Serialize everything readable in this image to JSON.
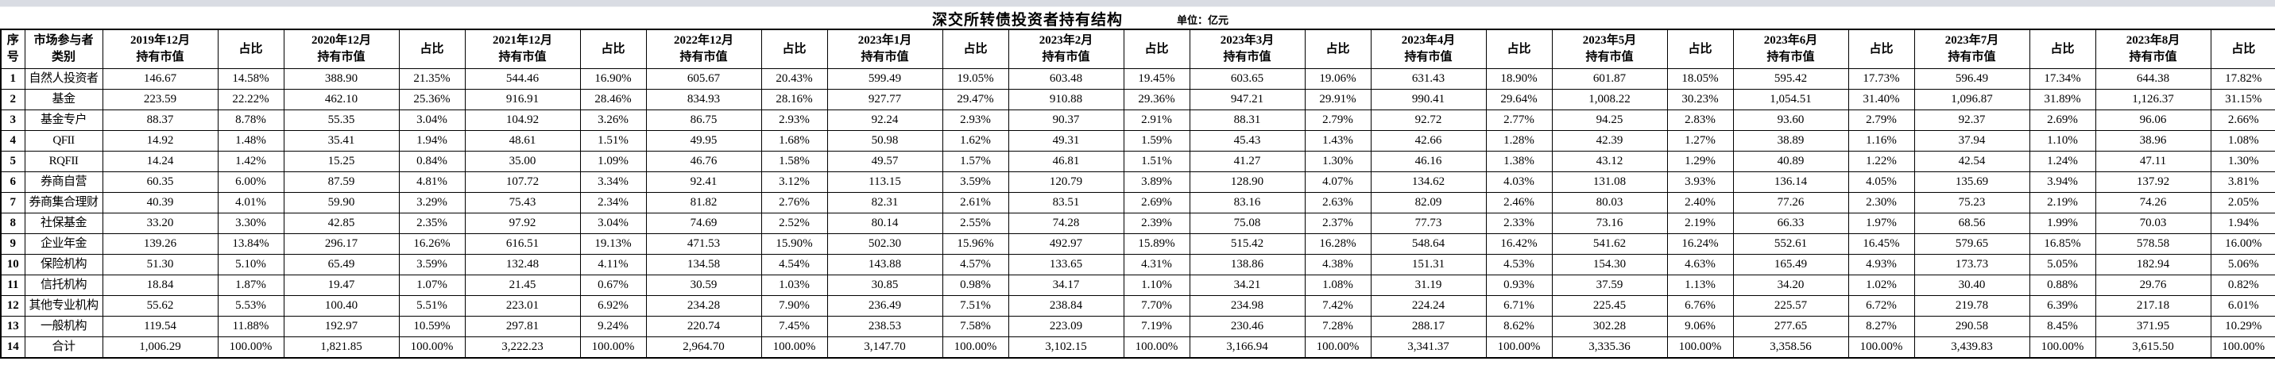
{
  "title": "深交所转债投资者持有结构",
  "unit_label": "单位：亿元",
  "table": {
    "header": {
      "col_no": "序号",
      "col_category": "市场参与者\n类别",
      "value_sub": "持有市值",
      "ratio_label": "占比",
      "periods": [
        "2019年12月",
        "2020年12月",
        "2021年12月",
        "2022年12月",
        "2023年1月",
        "2023年2月",
        "2023年3月",
        "2023年4月",
        "2023年5月",
        "2023年6月",
        "2023年7月",
        "2023年8月"
      ]
    },
    "rows": [
      {
        "no": "1",
        "category": "自然人投资者",
        "values": [
          "146.67",
          "14.58%",
          "388.90",
          "21.35%",
          "544.46",
          "16.90%",
          "605.67",
          "20.43%",
          "599.49",
          "19.05%",
          "603.48",
          "19.45%",
          "603.65",
          "19.06%",
          "631.43",
          "18.90%",
          "601.87",
          "18.05%",
          "595.42",
          "17.73%",
          "596.49",
          "17.34%",
          "644.38",
          "17.82%"
        ]
      },
      {
        "no": "2",
        "category": "基金",
        "values": [
          "223.59",
          "22.22%",
          "462.10",
          "25.36%",
          "916.91",
          "28.46%",
          "834.93",
          "28.16%",
          "927.77",
          "29.47%",
          "910.88",
          "29.36%",
          "947.21",
          "29.91%",
          "990.41",
          "29.64%",
          "1,008.22",
          "30.23%",
          "1,054.51",
          "31.40%",
          "1,096.87",
          "31.89%",
          "1,126.37",
          "31.15%"
        ]
      },
      {
        "no": "3",
        "category": "基金专户",
        "values": [
          "88.37",
          "8.78%",
          "55.35",
          "3.04%",
          "104.92",
          "3.26%",
          "86.75",
          "2.93%",
          "92.24",
          "2.93%",
          "90.37",
          "2.91%",
          "88.31",
          "2.79%",
          "92.72",
          "2.77%",
          "94.25",
          "2.83%",
          "93.60",
          "2.79%",
          "92.37",
          "2.69%",
          "96.06",
          "2.66%"
        ]
      },
      {
        "no": "4",
        "category": "QFII",
        "values": [
          "14.92",
          "1.48%",
          "35.41",
          "1.94%",
          "48.61",
          "1.51%",
          "49.95",
          "1.68%",
          "50.98",
          "1.62%",
          "49.31",
          "1.59%",
          "45.43",
          "1.43%",
          "42.66",
          "1.28%",
          "42.39",
          "1.27%",
          "38.89",
          "1.16%",
          "37.94",
          "1.10%",
          "38.96",
          "1.08%"
        ]
      },
      {
        "no": "5",
        "category": "RQFII",
        "values": [
          "14.24",
          "1.42%",
          "15.25",
          "0.84%",
          "35.00",
          "1.09%",
          "46.76",
          "1.58%",
          "49.57",
          "1.57%",
          "46.81",
          "1.51%",
          "41.27",
          "1.30%",
          "46.16",
          "1.38%",
          "43.12",
          "1.29%",
          "40.89",
          "1.22%",
          "42.54",
          "1.24%",
          "47.11",
          "1.30%"
        ]
      },
      {
        "no": "6",
        "category": "券商自营",
        "values": [
          "60.35",
          "6.00%",
          "87.59",
          "4.81%",
          "107.72",
          "3.34%",
          "92.41",
          "3.12%",
          "113.15",
          "3.59%",
          "120.79",
          "3.89%",
          "128.90",
          "4.07%",
          "134.62",
          "4.03%",
          "131.08",
          "3.93%",
          "136.14",
          "4.05%",
          "135.69",
          "3.94%",
          "137.92",
          "3.81%"
        ]
      },
      {
        "no": "7",
        "category": "券商集合理财",
        "values": [
          "40.39",
          "4.01%",
          "59.90",
          "3.29%",
          "75.43",
          "2.34%",
          "81.82",
          "2.76%",
          "82.31",
          "2.61%",
          "83.51",
          "2.69%",
          "83.16",
          "2.63%",
          "82.09",
          "2.46%",
          "80.03",
          "2.40%",
          "77.26",
          "2.30%",
          "75.23",
          "2.19%",
          "74.26",
          "2.05%"
        ]
      },
      {
        "no": "8",
        "category": "社保基金",
        "values": [
          "33.20",
          "3.30%",
          "42.85",
          "2.35%",
          "97.92",
          "3.04%",
          "74.69",
          "2.52%",
          "80.14",
          "2.55%",
          "74.28",
          "2.39%",
          "75.08",
          "2.37%",
          "77.73",
          "2.33%",
          "73.16",
          "2.19%",
          "66.33",
          "1.97%",
          "68.56",
          "1.99%",
          "70.03",
          "1.94%"
        ]
      },
      {
        "no": "9",
        "category": "企业年金",
        "values": [
          "139.26",
          "13.84%",
          "296.17",
          "16.26%",
          "616.51",
          "19.13%",
          "471.53",
          "15.90%",
          "502.30",
          "15.96%",
          "492.97",
          "15.89%",
          "515.42",
          "16.28%",
          "548.64",
          "16.42%",
          "541.62",
          "16.24%",
          "552.61",
          "16.45%",
          "579.65",
          "16.85%",
          "578.58",
          "16.00%"
        ]
      },
      {
        "no": "10",
        "category": "保险机构",
        "values": [
          "51.30",
          "5.10%",
          "65.49",
          "3.59%",
          "132.48",
          "4.11%",
          "134.58",
          "4.54%",
          "143.88",
          "4.57%",
          "133.65",
          "4.31%",
          "138.86",
          "4.38%",
          "151.31",
          "4.53%",
          "154.30",
          "4.63%",
          "165.49",
          "4.93%",
          "173.73",
          "5.05%",
          "182.94",
          "5.06%"
        ]
      },
      {
        "no": "11",
        "category": "信托机构",
        "values": [
          "18.84",
          "1.87%",
          "19.47",
          "1.07%",
          "21.45",
          "0.67%",
          "30.59",
          "1.03%",
          "30.85",
          "0.98%",
          "34.17",
          "1.10%",
          "34.21",
          "1.08%",
          "31.19",
          "0.93%",
          "37.59",
          "1.13%",
          "34.20",
          "1.02%",
          "30.40",
          "0.88%",
          "29.76",
          "0.82%"
        ]
      },
      {
        "no": "12",
        "category": "其他专业机构",
        "values": [
          "55.62",
          "5.53%",
          "100.40",
          "5.51%",
          "223.01",
          "6.92%",
          "234.28",
          "7.90%",
          "236.49",
          "7.51%",
          "238.84",
          "7.70%",
          "234.98",
          "7.42%",
          "224.24",
          "6.71%",
          "225.45",
          "6.76%",
          "225.57",
          "6.72%",
          "219.78",
          "6.39%",
          "217.18",
          "6.01%"
        ]
      },
      {
        "no": "13",
        "category": "一般机构",
        "values": [
          "119.54",
          "11.88%",
          "192.97",
          "10.59%",
          "297.81",
          "9.24%",
          "220.74",
          "7.45%",
          "238.53",
          "7.58%",
          "223.09",
          "7.19%",
          "230.46",
          "7.28%",
          "288.17",
          "8.62%",
          "302.28",
          "9.06%",
          "277.65",
          "8.27%",
          "290.58",
          "8.45%",
          "371.95",
          "10.29%"
        ]
      },
      {
        "no": "14",
        "category": "合计",
        "values": [
          "1,006.29",
          "100.00%",
          "1,821.85",
          "100.00%",
          "3,222.23",
          "100.00%",
          "2,964.70",
          "100.00%",
          "3,147.70",
          "100.00%",
          "3,102.15",
          "100.00%",
          "3,166.94",
          "100.00%",
          "3,341.37",
          "100.00%",
          "3,335.36",
          "100.00%",
          "3,358.56",
          "100.00%",
          "3,439.83",
          "100.00%",
          "3,615.50",
          "100.00%"
        ]
      }
    ]
  },
  "colors": {
    "top_strip": "#d9dce3",
    "border": "#000000",
    "background": "#ffffff"
  }
}
